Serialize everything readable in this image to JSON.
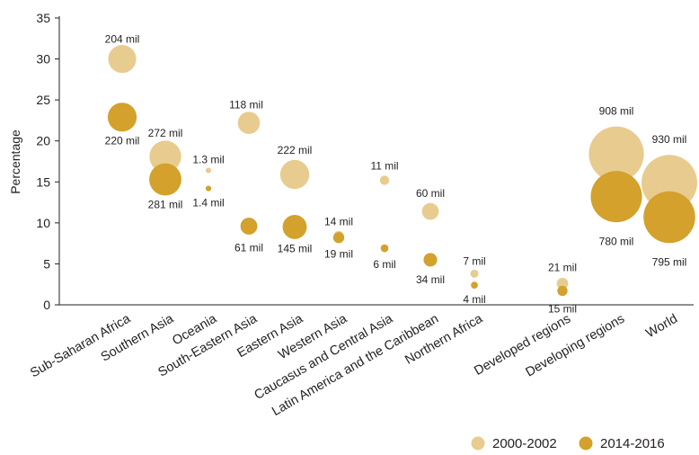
{
  "chart_data": {
    "type": "scatter",
    "title": "",
    "xlabel": "",
    "ylabel": "Percentage",
    "ylim": [
      0,
      35
    ],
    "yticks": [
      "0",
      "5",
      "10",
      "15",
      "20",
      "25",
      "30",
      "35"
    ],
    "grid": false,
    "legend_position": "bottom-right",
    "categories": [
      "Sub-Saharan Africa",
      "Southern Asia",
      "Oceania",
      "South-Eastern Asia",
      "Eastern Asia",
      "Western Asia",
      "Caucasus and Central Asia",
      "Latin America and the Caribbean",
      "Northern Africa",
      "Developed regions",
      "Developing regions",
      "World"
    ],
    "series": [
      {
        "name": "2000-2002",
        "color": "#e8cb8f",
        "values": [
          30.0,
          18.1,
          16.4,
          22.2,
          15.9,
          8.4,
          15.2,
          11.4,
          3.8,
          2.6,
          18.4,
          14.9
        ],
        "labels": [
          "204 mil",
          "272 mil",
          "1.3 mil",
          "118 mil",
          "222 mil",
          "14 mil",
          "11 mil",
          "60 mil",
          "7 mil",
          "21 mil",
          "908 mil",
          "930 mil"
        ],
        "size_millions": [
          204,
          272,
          1.3,
          118,
          222,
          14,
          11,
          60,
          7,
          21,
          908,
          930
        ]
      },
      {
        "name": "2014-2016",
        "color": "#d3a12c",
        "values": [
          22.9,
          15.3,
          14.2,
          9.6,
          9.5,
          8.2,
          6.9,
          5.5,
          2.4,
          1.7,
          13.2,
          10.7
        ],
        "labels": [
          "220 mil",
          "281 mil",
          "1.4 mil",
          "61 mil",
          "145 mil",
          "19 mil",
          "6 mil",
          "34 mil",
          "4 mil",
          "15 mil",
          "780 mil",
          "795 mil"
        ],
        "size_millions": [
          220,
          281,
          1.4,
          61,
          145,
          19,
          6,
          34,
          4,
          15,
          780,
          795
        ]
      }
    ]
  }
}
